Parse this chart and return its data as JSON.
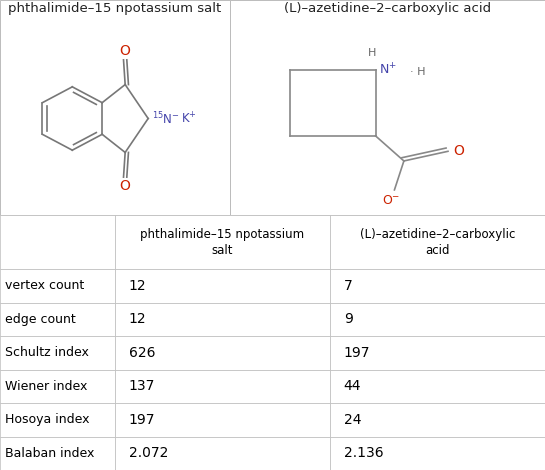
{
  "col1_header": "phthalimide–15 npotassium\nsalt",
  "col2_header": "(L)–azetidine–2–carboxylic\nacid",
  "panel1_title": "phthalimide–15 npotassium salt",
  "panel2_title": "(L)–azetidine–2–carboxylic acid",
  "row_labels": [
    "vertex count",
    "edge count",
    "Schultz index",
    "Wiener index",
    "Hosoya index",
    "Balaban index"
  ],
  "col1_values": [
    "12",
    "12",
    "626",
    "137",
    "197",
    "2.072"
  ],
  "col2_values": [
    "7",
    "9",
    "197",
    "44",
    "24",
    "2.136"
  ],
  "bg_color": "#ffffff",
  "border_color": "#bbbbbb",
  "text_color": "#000000",
  "mol_line_color": "#888888",
  "red_color": "#cc2200",
  "blue_color": "#4444aa",
  "gray_color": "#666666"
}
